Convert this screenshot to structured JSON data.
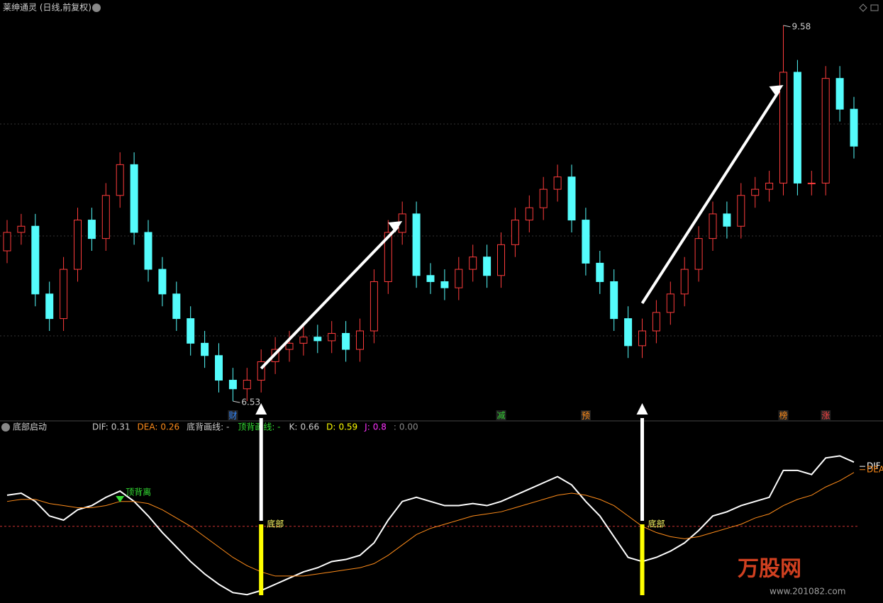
{
  "window": {
    "title": "莱绅通灵 (日线,前复权)"
  },
  "chart_data": [
    {
      "type": "candlestick",
      "open": [
        7.75,
        7.9,
        7.95,
        7.4,
        7.2,
        7.6,
        8.0,
        7.85,
        8.2,
        8.45,
        7.9,
        7.6,
        7.4,
        7.2,
        7.0,
        6.9,
        6.7,
        6.63,
        6.7,
        6.85,
        6.95,
        7.0,
        7.05,
        7.02,
        7.08,
        6.95,
        7.1,
        7.5,
        7.9,
        8.05,
        7.55,
        7.5,
        7.45,
        7.6,
        7.7,
        7.55,
        7.8,
        8.0,
        8.1,
        8.25,
        8.35,
        8.0,
        7.65,
        7.5,
        7.2,
        6.98,
        7.1,
        7.25,
        7.4,
        7.6,
        7.85,
        8.05,
        7.95,
        8.2,
        8.25,
        8.3,
        9.2,
        8.3,
        8.3,
        9.15,
        8.9
      ],
      "high": [
        8.0,
        8.05,
        8.05,
        7.5,
        7.7,
        8.1,
        8.1,
        8.3,
        8.55,
        8.55,
        8.0,
        7.7,
        7.5,
        7.3,
        7.1,
        7.0,
        6.8,
        6.8,
        6.95,
        7.05,
        7.1,
        7.15,
        7.15,
        7.18,
        7.18,
        7.2,
        7.6,
        8.0,
        8.15,
        8.15,
        7.65,
        7.6,
        7.7,
        7.8,
        7.8,
        7.9,
        8.1,
        8.2,
        8.35,
        8.45,
        8.45,
        8.1,
        7.75,
        7.6,
        7.3,
        7.2,
        7.35,
        7.5,
        7.7,
        7.95,
        8.15,
        8.15,
        8.3,
        8.35,
        8.4,
        9.58,
        9.3,
        8.4,
        9.25,
        9.25,
        9.0
      ],
      "low": [
        7.65,
        7.8,
        7.3,
        7.1,
        7.1,
        7.5,
        7.75,
        7.75,
        8.1,
        7.8,
        7.5,
        7.3,
        7.1,
        6.9,
        6.8,
        6.6,
        6.53,
        6.53,
        6.6,
        6.75,
        6.85,
        6.9,
        6.92,
        6.92,
        6.85,
        6.85,
        7.0,
        7.4,
        7.8,
        7.45,
        7.4,
        7.35,
        7.35,
        7.5,
        7.45,
        7.45,
        7.7,
        7.9,
        8.0,
        8.15,
        7.9,
        7.55,
        7.4,
        7.1,
        6.88,
        6.88,
        7.0,
        7.15,
        7.3,
        7.5,
        7.75,
        7.85,
        7.85,
        8.1,
        8.15,
        8.2,
        8.2,
        8.2,
        8.2,
        8.8,
        8.5
      ],
      "close": [
        7.9,
        7.95,
        7.4,
        7.2,
        7.6,
        8.0,
        7.85,
        8.2,
        8.45,
        7.9,
        7.6,
        7.4,
        7.2,
        7.0,
        6.9,
        6.7,
        6.63,
        6.7,
        6.85,
        6.95,
        7.0,
        7.05,
        7.02,
        7.08,
        6.95,
        7.1,
        7.5,
        7.9,
        8.05,
        7.55,
        7.5,
        7.45,
        7.6,
        7.7,
        7.55,
        7.8,
        8.0,
        8.1,
        8.25,
        8.35,
        8.0,
        7.65,
        7.5,
        7.2,
        6.98,
        7.1,
        7.25,
        7.4,
        7.6,
        7.85,
        8.05,
        7.95,
        8.2,
        8.25,
        8.3,
        9.2,
        8.3,
        8.3,
        9.15,
        8.9,
        8.6
      ],
      "ylim": [
        6.45,
        9.66
      ],
      "up_color": "#ff3c3c",
      "down_color": "#54fcfc",
      "grid": true,
      "markers": [
        "财",
        "减",
        "预",
        "榜",
        "涨"
      ]
    },
    {
      "type": "line",
      "title": "底部启动",
      "legend": [
        {
          "label": "DIF:",
          "value": 0.31,
          "color": "#cccccc"
        },
        {
          "label": "DEA:",
          "value": 0.26,
          "color": "#ff8c1a"
        },
        {
          "label": "底背画线: -",
          "color": "#cccccc"
        },
        {
          "label": "顶背画线: -",
          "color": "#33dd33"
        },
        {
          "label": "K:",
          "value": 0.66,
          "color": "#cccccc"
        },
        {
          "label": "D:",
          "value": 0.59,
          "color": "#ffff00"
        },
        {
          "label": "J:",
          "value": 0.8,
          "color": "#ff33ff"
        },
        {
          "label": ":",
          "value": 0,
          "value_label": "0.00",
          "color": "#888888"
        }
      ],
      "series": [
        {
          "name": "DIF",
          "color": "#ffffff",
          "values": [
            0.15,
            0.16,
            0.12,
            0.05,
            0.03,
            0.08,
            0.1,
            0.14,
            0.17,
            0.12,
            0.05,
            -0.03,
            -0.1,
            -0.17,
            -0.23,
            -0.28,
            -0.32,
            -0.33,
            -0.31,
            -0.28,
            -0.25,
            -0.22,
            -0.2,
            -0.17,
            -0.16,
            -0.14,
            -0.08,
            0.03,
            0.12,
            0.14,
            0.12,
            0.1,
            0.1,
            0.11,
            0.1,
            0.12,
            0.15,
            0.18,
            0.21,
            0.24,
            0.2,
            0.12,
            0.05,
            -0.05,
            -0.15,
            -0.17,
            -0.15,
            -0.12,
            -0.08,
            -0.02,
            0.05,
            0.07,
            0.1,
            0.12,
            0.14,
            0.27,
            0.27,
            0.25,
            0.33,
            0.34,
            0.31
          ]
        },
        {
          "name": "DEA",
          "color": "#ff8c1a",
          "values": [
            0.12,
            0.13,
            0.13,
            0.11,
            0.1,
            0.09,
            0.09,
            0.1,
            0.12,
            0.12,
            0.11,
            0.08,
            0.04,
            0.0,
            -0.05,
            -0.1,
            -0.15,
            -0.19,
            -0.22,
            -0.24,
            -0.24,
            -0.24,
            -0.23,
            -0.22,
            -0.21,
            -0.2,
            -0.18,
            -0.14,
            -0.09,
            -0.04,
            -0.01,
            0.01,
            0.03,
            0.05,
            0.06,
            0.07,
            0.09,
            0.11,
            0.13,
            0.15,
            0.16,
            0.15,
            0.13,
            0.1,
            0.05,
            0.0,
            -0.03,
            -0.05,
            -0.06,
            -0.05,
            -0.03,
            -0.01,
            0.01,
            0.04,
            0.06,
            0.1,
            0.13,
            0.15,
            0.19,
            0.22,
            0.26
          ]
        }
      ],
      "ylim": [
        -0.36,
        0.42
      ],
      "annotations": [
        "顶背离",
        "底部",
        "底部"
      ]
    }
  ],
  "watermark": {
    "brand": "万股网",
    "url": "www.201082.com"
  }
}
